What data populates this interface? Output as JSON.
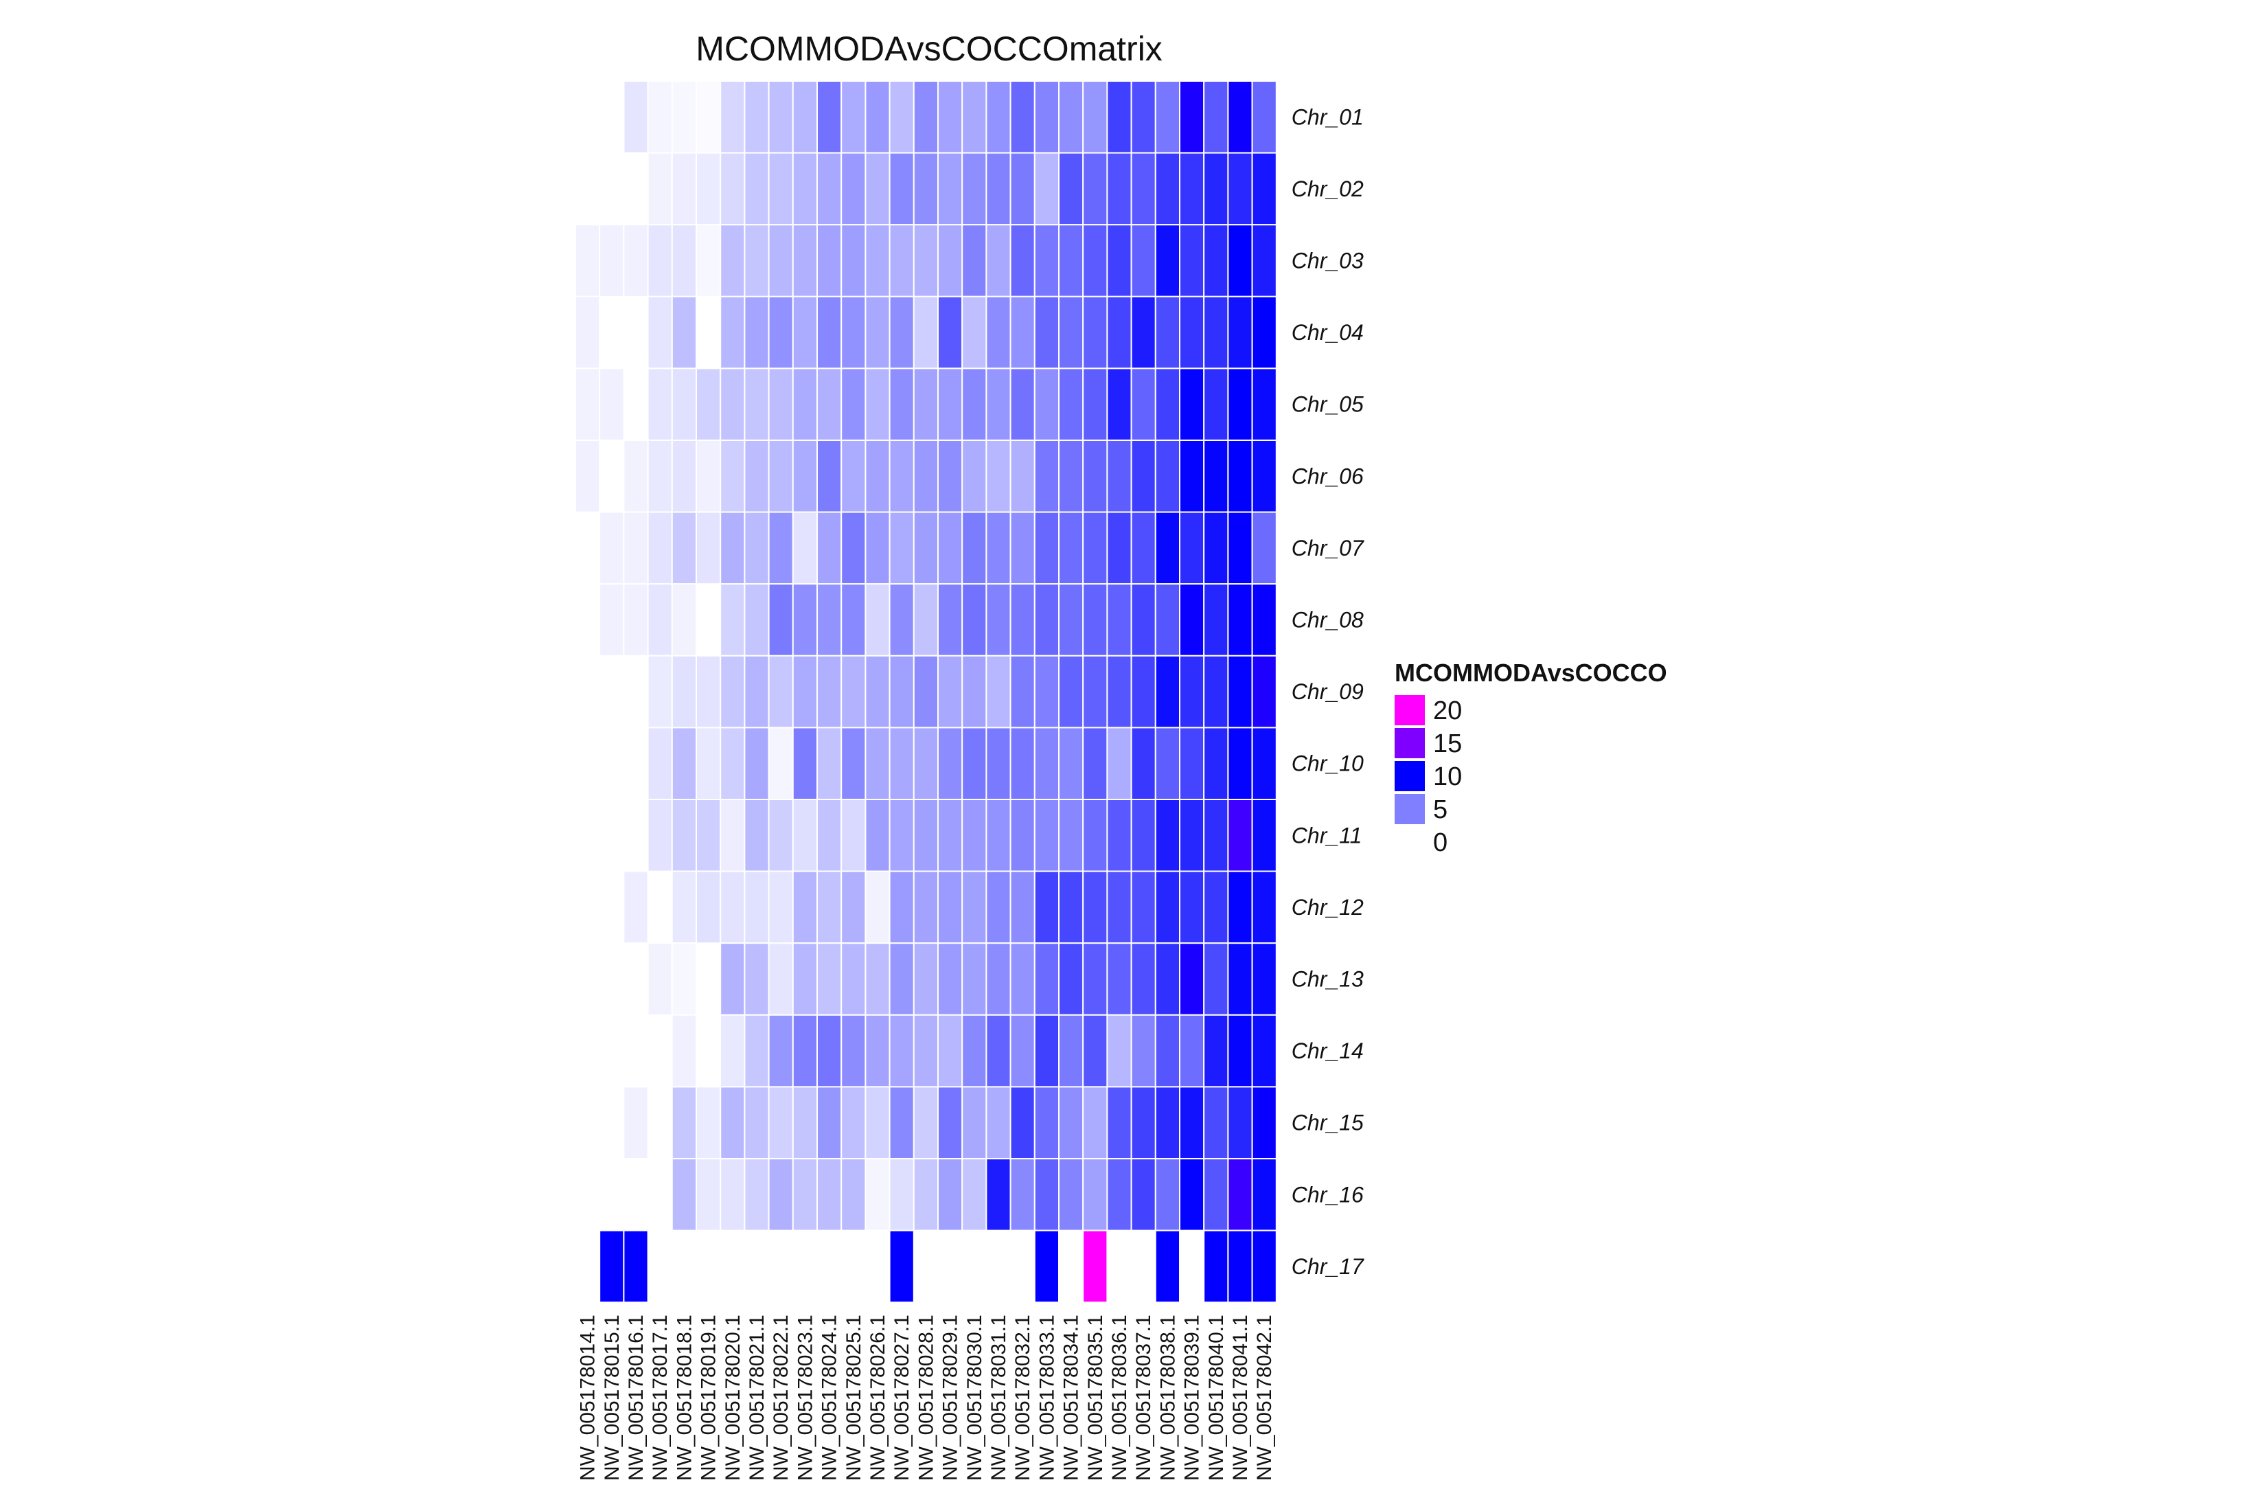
{
  "chart_data": {
    "type": "heatmap",
    "title": "MCOMMODAvsCOCCOmatrix",
    "legend": {
      "title": "MCOMMODAvsCOCCO",
      "breaks": [
        20,
        15,
        10,
        5,
        0
      ],
      "colors": [
        "#ff00ff",
        "#7f00ff",
        "#0000ff",
        "#7f7fff",
        "#ffffff"
      ]
    },
    "color_scale": {
      "stops": [
        {
          "value": 0,
          "color": "#ffffff"
        },
        {
          "value": 5,
          "color": "#7f7fff"
        },
        {
          "value": 10,
          "color": "#0000ff"
        },
        {
          "value": 15,
          "color": "#7f00ff"
        },
        {
          "value": 20,
          "color": "#ff00ff"
        }
      ],
      "empty_value": 0
    },
    "rows": [
      "Chr_01",
      "Chr_02",
      "Chr_03",
      "Chr_04",
      "Chr_05",
      "Chr_06",
      "Chr_07",
      "Chr_08",
      "Chr_09",
      "Chr_10",
      "Chr_11",
      "Chr_12",
      "Chr_13",
      "Chr_14",
      "Chr_15",
      "Chr_16",
      "Chr_17"
    ],
    "columns": [
      "NW_005178014.1",
      "NW_005178015.1",
      "NW_005178016.1",
      "NW_005178017.1",
      "NW_005178018.1",
      "NW_005178019.1",
      "NW_005178020.1",
      "NW_005178021.1",
      "NW_005178022.1",
      "NW_005178023.1",
      "NW_005178024.1",
      "NW_005178025.1",
      "NW_005178026.1",
      "NW_005178027.1",
      "NW_005178028.1",
      "NW_005178029.1",
      "NW_005178030.1",
      "NW_005178031.1",
      "NW_005178032.1",
      "NW_005178033.1",
      "NW_005178034.1",
      "NW_005178035.1",
      "NW_005178036.1",
      "NW_005178037.1",
      "NW_005178038.1",
      "NW_005178039.1",
      "NW_005178040.1",
      "NW_005178041.1",
      "NW_005178042.1"
    ],
    "values": [
      [
        0,
        0,
        1,
        0.4,
        0.3,
        0.2,
        1.6,
        2.2,
        2.5,
        2.8,
        5.5,
        3.3,
        4,
        2.6,
        4.5,
        3.6,
        3.4,
        4.2,
        5.9,
        4.8,
        4.4,
        4.1,
        7.5,
        6.9,
        5.3,
        11,
        6.5,
        10.5,
        6
      ],
      [
        0,
        0,
        0,
        0.5,
        0.7,
        0.8,
        1.5,
        2.2,
        2.4,
        2.8,
        3.4,
        4,
        3,
        4.6,
        4.4,
        3.7,
        4.4,
        4.9,
        5.2,
        2.8,
        6.6,
        5.9,
        6.8,
        6.5,
        7.7,
        7.9,
        8.5,
        8.4,
        9.1
      ],
      [
        0.5,
        0.6,
        0.6,
        1,
        1.1,
        0.3,
        2.5,
        2.3,
        2.8,
        3.1,
        3.6,
        3.8,
        3.2,
        3.1,
        3,
        3.4,
        4.9,
        3.4,
        5.9,
        5.3,
        5.7,
        6.4,
        7.5,
        6.2,
        9.4,
        7.8,
        8.3,
        10,
        8.9
      ],
      [
        0.6,
        0,
        0,
        1,
        2.5,
        0,
        2.8,
        3.5,
        4.3,
        3.3,
        4.7,
        4.3,
        3.4,
        4.4,
        1.9,
        6.5,
        2.5,
        4.5,
        4.3,
        5.9,
        5.6,
        6.2,
        7.3,
        8.9,
        7,
        7.9,
        8.1,
        9.3,
        10
      ],
      [
        0.5,
        0.6,
        0,
        1,
        1.2,
        1.8,
        2.4,
        2.3,
        2.6,
        3.3,
        3.1,
        4.3,
        2.9,
        4.4,
        3.6,
        3.9,
        4.6,
        4.1,
        5.5,
        4.4,
        5.7,
        6.3,
        8.7,
        6.1,
        7.5,
        9.9,
        8.2,
        10,
        9.6
      ],
      [
        0.6,
        0,
        0.5,
        0.9,
        1.1,
        0.6,
        1.9,
        2.6,
        2.7,
        3.3,
        5.1,
        3.3,
        3.6,
        3.5,
        4,
        4.4,
        3.2,
        2.8,
        3.1,
        5.3,
        5.5,
        6,
        6.3,
        7.6,
        7.2,
        9.9,
        9.8,
        10,
        9.6
      ],
      [
        0,
        0.6,
        0.6,
        1.1,
        2.1,
        1.1,
        3.1,
        2.7,
        4.2,
        1.1,
        3.6,
        5.2,
        3.9,
        3.3,
        3.8,
        4,
        5.1,
        4.7,
        4.4,
        5.9,
        5.7,
        6.2,
        7.4,
        6.9,
        9.7,
        8.3,
        9.3,
        10.1,
        5.8
      ],
      [
        0,
        0.6,
        0.6,
        1,
        0.5,
        0,
        1.7,
        2.3,
        5.2,
        4.4,
        4.2,
        4.6,
        1.6,
        4.5,
        2.4,
        4.9,
        5.5,
        4.9,
        5.3,
        5.9,
        5.6,
        6.1,
        6.2,
        7.3,
        6.6,
        10.4,
        8.5,
        10.2,
        10.3
      ],
      [
        0,
        0,
        0,
        0.8,
        1.2,
        1.1,
        2.2,
        2.9,
        2.2,
        3.3,
        3.1,
        3,
        3.4,
        3.7,
        4.5,
        3.4,
        3.6,
        2.8,
        5.1,
        5,
        6.1,
        6.2,
        6.6,
        7.4,
        9.4,
        8.2,
        8.3,
        9.9,
        11.2
      ],
      [
        0,
        0,
        0,
        1.1,
        2.6,
        0.9,
        1.9,
        3.4,
        0.4,
        5.1,
        2.4,
        4.6,
        3.4,
        3.4,
        3.4,
        4.5,
        5.3,
        5.2,
        5.3,
        4.8,
        4.6,
        6.3,
        3.2,
        7.8,
        6.3,
        7.3,
        8.5,
        9.9,
        9.6
      ],
      [
        0,
        0,
        0,
        1.1,
        1.9,
        1.9,
        0.7,
        2.7,
        1.9,
        1.3,
        2.4,
        1.5,
        3.8,
        3.5,
        3.7,
        3.8,
        4,
        4.2,
        4.8,
        4.6,
        4.7,
        5.7,
        6.5,
        7,
        8.9,
        8.5,
        8.2,
        12.5,
        9.6
      ],
      [
        0,
        0,
        0.7,
        0,
        0.9,
        1.2,
        1.1,
        1.2,
        1,
        2.9,
        2.4,
        3.1,
        0.5,
        3.9,
        3.6,
        3.9,
        3.7,
        4.6,
        4.5,
        7.4,
        7.2,
        6.9,
        6.7,
        6.9,
        8.5,
        8,
        7.8,
        9.9,
        9.5
      ],
      [
        0,
        0,
        0,
        0.5,
        0.3,
        0,
        3,
        2.6,
        1,
        2.8,
        2.4,
        2.8,
        2.6,
        4.1,
        3.1,
        3.9,
        3.7,
        4.5,
        4.2,
        5.8,
        7.1,
        6.4,
        6.2,
        6.9,
        8.1,
        11,
        7.1,
        9.7,
        9.6
      ],
      [
        0,
        0,
        0,
        0,
        0.6,
        0,
        0.9,
        2.2,
        4.1,
        5,
        5.4,
        4.5,
        3.6,
        3.5,
        3.1,
        2.8,
        4.6,
        6.1,
        4.5,
        7.5,
        5.2,
        6.6,
        2.8,
        4.8,
        6.6,
        5.7,
        8.9,
        9.8,
        9.5
      ],
      [
        0,
        0,
        0.6,
        0,
        2.2,
        0.8,
        2.8,
        2.4,
        1.8,
        2.3,
        4.1,
        2.5,
        1.7,
        4.6,
        2,
        5.4,
        3.4,
        3.2,
        7.5,
        5.7,
        4.4,
        3.3,
        6.6,
        7.5,
        8.3,
        9.3,
        7.1,
        8.5,
        10.3
      ],
      [
        0,
        0,
        0,
        0,
        2.7,
        0.9,
        1.1,
        1.8,
        3.1,
        2.3,
        2.6,
        2.7,
        0.4,
        1.3,
        2.2,
        3.7,
        2.3,
        8.9,
        4.6,
        6.2,
        4.8,
        3.7,
        6.1,
        7.4,
        5.6,
        9.9,
        6.6,
        12.3,
        9.7
      ],
      [
        0,
        10.1,
        10.1,
        0,
        0,
        0,
        0,
        0,
        0,
        0,
        0,
        0,
        0,
        10.1,
        0,
        0,
        0,
        0,
        0,
        10.1,
        0,
        20.2,
        0,
        0,
        10.1,
        0,
        10.1,
        10.1,
        10.1
      ]
    ]
  }
}
